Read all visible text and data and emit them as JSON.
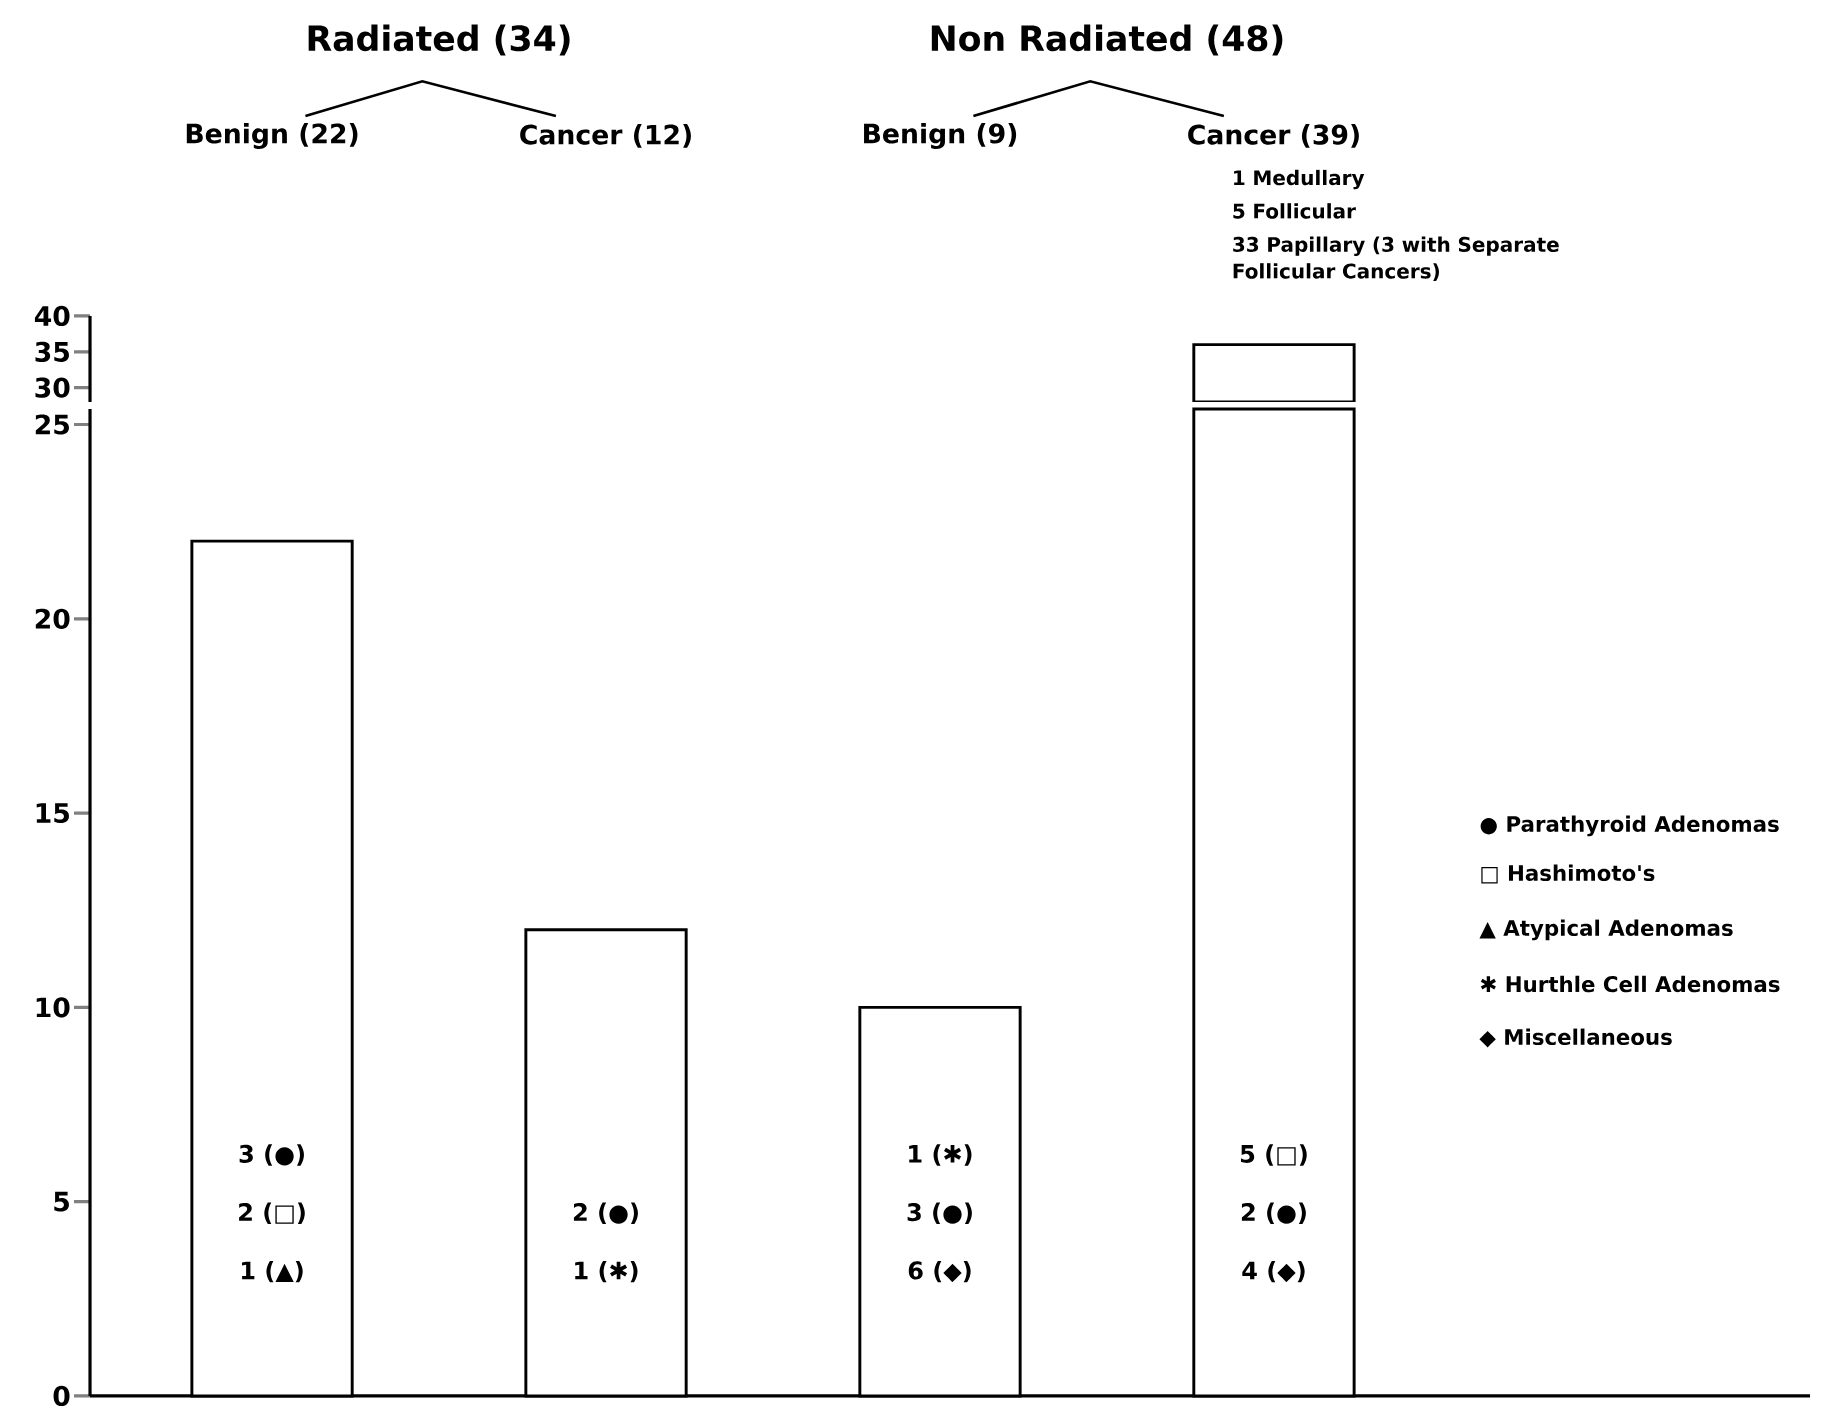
{
  "chart_data": [
    {
      "type": "bar",
      "categories": [
        "Benign (22)",
        "Cancer (12)",
        "Benign (9)",
        "Cancer (39)"
      ],
      "values": [
        null,
        null,
        null,
        36
      ],
      "color": "#ffffff",
      "ylim": [
        28,
        40
      ],
      "yticks": [
        30,
        35,
        40
      ],
      "tick_labels": "y",
      "annotations": [
        "Radiated (34)",
        "Non Radiated (48)",
        "1 Medullary",
        "5 Follicular",
        "33 Papillary (3 with Separate Follicular Cancers)"
      ]
    },
    {
      "type": "bar",
      "categories": [
        null,
        null,
        null,
        null
      ],
      "values": [
        22,
        12,
        10,
        25.4
      ],
      "color": "#ffffff",
      "ylim": [
        0,
        25.4
      ],
      "yticks": [
        0,
        5,
        10,
        15,
        20,
        25
      ],
      "tick_labels": "y",
      "annotations": [
        "● Parathyroid Adenomas",
        "□ Hashimoto's",
        "▲ Atypical Adenomas",
        "✱ Hurthle Cell Adenomas",
        "◆ Miscellaneous",
        "3 (●)",
        "2 (□)",
        "1 (▲)",
        "2 (●)",
        "1 (✱)",
        "1 (✱)",
        "3 (●)",
        "6 (◆)",
        "5 (□)",
        "2 (●)",
        "4 (◆)"
      ]
    }
  ]
}
